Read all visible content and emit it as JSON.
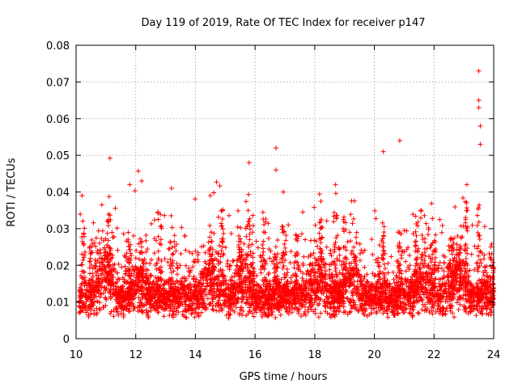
{
  "chart_data": {
    "type": "scatter",
    "title": "Day 119 of 2019, Rate Of TEC Index for receiver p147",
    "xlabel": "GPS time / hours",
    "ylabel": "ROTI / TECUs",
    "xlim": [
      10,
      24
    ],
    "ylim": [
      0,
      0.08
    ],
    "xticks": [
      10,
      12,
      14,
      16,
      18,
      20,
      22,
      24
    ],
    "yticks": [
      0,
      0.01,
      0.02,
      0.03,
      0.04,
      0.05,
      0.06,
      0.07,
      0.08
    ],
    "ytick_labels": [
      "0",
      "0.01",
      "0.02",
      "0.03",
      "0.04",
      "0.05",
      "0.06",
      "0.07",
      "0.08"
    ],
    "grid": true,
    "marker": "+",
    "color": "#ff0000",
    "notable_points": [
      {
        "x": 23.5,
        "y": 0.073
      },
      {
        "x": 23.5,
        "y": 0.065
      },
      {
        "x": 23.5,
        "y": 0.063
      },
      {
        "x": 23.55,
        "y": 0.058
      },
      {
        "x": 23.55,
        "y": 0.053
      },
      {
        "x": 20.85,
        "y": 0.054
      },
      {
        "x": 16.7,
        "y": 0.052
      },
      {
        "x": 20.3,
        "y": 0.051
      },
      {
        "x": 15.8,
        "y": 0.048
      },
      {
        "x": 16.7,
        "y": 0.046
      },
      {
        "x": 12.2,
        "y": 0.043
      },
      {
        "x": 11.8,
        "y": 0.042
      },
      {
        "x": 18.7,
        "y": 0.042
      },
      {
        "x": 23.1,
        "y": 0.042
      },
      {
        "x": 13.2,
        "y": 0.041
      },
      {
        "x": 16.95,
        "y": 0.04
      },
      {
        "x": 10.2,
        "y": 0.039
      },
      {
        "x": 14.5,
        "y": 0.039
      }
    ],
    "bulk_series": {
      "description": "dense noisy ROTI values across the whole time range",
      "x_range": [
        10.1,
        24.0
      ],
      "typical_range": [
        0.003,
        0.03
      ],
      "median": 0.01,
      "approx_points": 4200
    }
  }
}
